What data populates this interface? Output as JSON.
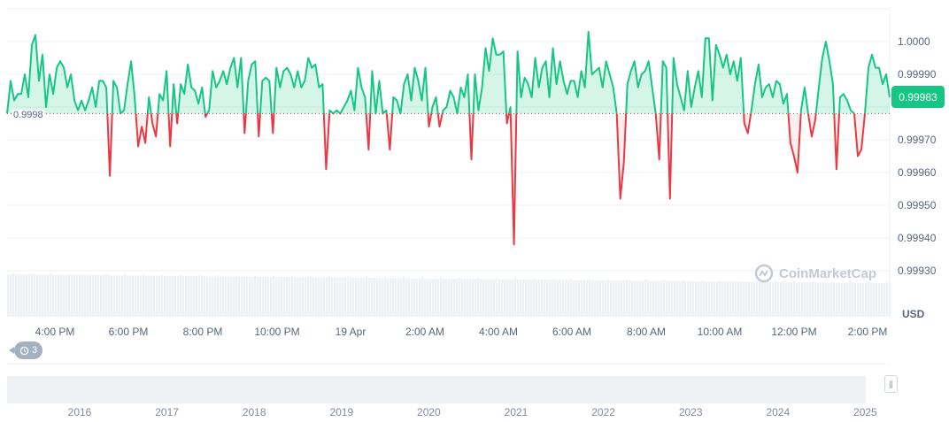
{
  "chart_data": {
    "type": "line",
    "currency_label": "USD",
    "current_price": "0.99983",
    "baseline_value": 0.99978,
    "baseline_label": "0.9998",
    "ylim": [
      0.99916,
      1.0001
    ],
    "y_ticks": [
      {
        "value": 1.0,
        "label": "1.0000"
      },
      {
        "value": 0.9999,
        "label": "0.99990"
      },
      {
        "value": 0.9997,
        "label": "0.99970"
      },
      {
        "value": 0.9996,
        "label": "0.99960"
      },
      {
        "value": 0.9995,
        "label": "0.99950"
      },
      {
        "value": 0.9994,
        "label": "0.99940"
      },
      {
        "value": 0.9993,
        "label": "0.99930"
      }
    ],
    "x_ticks": [
      "4:00 PM",
      "6:00 PM",
      "8:00 PM",
      "10:00 PM",
      "19 Apr",
      "2:00 AM",
      "4:00 AM",
      "6:00 AM",
      "8:00 AM",
      "10:00 AM",
      "12:00 PM",
      "2:00 PM"
    ],
    "navigator_ticks": [
      "2016",
      "2017",
      "2018",
      "2019",
      "2020",
      "2021",
      "2022",
      "2023",
      "2024",
      "2025"
    ],
    "grid": true,
    "colors": {
      "up": "#16c784",
      "down": "#ea3943",
      "volume": "#eff2f5"
    },
    "values": [
      0.99978,
      0.99988,
      0.99982,
      0.99984,
      0.99984,
      0.9999,
      0.99983,
      0.99999,
      1.00002,
      0.99988,
      0.99996,
      0.9998,
      0.9999,
      0.99984,
      0.99992,
      0.99994,
      0.99992,
      0.99986,
      0.9999,
      0.99982,
      0.99979,
      0.99982,
      0.99979,
      0.99982,
      0.99986,
      0.9998,
      0.99988,
      0.99988,
      0.99986,
      0.99959,
      0.99988,
      0.99986,
      0.99978,
      0.99979,
      0.99987,
      0.99994,
      0.99983,
      0.99968,
      0.99974,
      0.99969,
      0.99983,
      0.99975,
      0.99971,
      0.99984,
      0.99982,
      0.99991,
      0.99968,
      0.99987,
      0.99975,
      0.99987,
      0.99984,
      0.99993,
      0.99986,
      0.99985,
      0.99981,
      0.99986,
      0.99977,
      0.99979,
      0.99991,
      0.99986,
      0.99988,
      0.99991,
      0.99987,
      0.99992,
      0.99995,
      0.99986,
      0.99995,
      0.99972,
      0.99988,
      0.99993,
      0.99994,
      0.99971,
      0.99988,
      0.99989,
      0.99988,
      0.99972,
      0.99992,
      0.99986,
      0.99991,
      0.99992,
      0.9999,
      0.99986,
      0.99991,
      0.99986,
      0.99988,
      0.99995,
      0.99992,
      0.99993,
      0.99986,
      0.99987,
      0.99961,
      0.99979,
      0.99978,
      0.99979,
      0.99978,
      0.9998,
      0.99982,
      0.99985,
      0.99979,
      0.99992,
      0.99986,
      0.99983,
      0.99967,
      0.99991,
      0.99978,
      0.99988,
      0.99978,
      0.99979,
      0.99967,
      0.99983,
      0.99982,
      0.99978,
      0.99987,
      0.9999,
      0.99982,
      0.99992,
      0.99988,
      0.99982,
      0.99992,
      0.99974,
      0.9998,
      0.99983,
      0.99974,
      0.99979,
      0.9998,
      0.99985,
      0.99983,
      0.99978,
      0.99986,
      0.99983,
      0.9999,
      0.99964,
      0.9999,
      0.99979,
      0.99986,
      0.99998,
      0.99991,
      1.00001,
      0.99996,
      0.99996,
      0.99997,
      0.99975,
      0.9998,
      0.99938,
      0.99997,
      0.99983,
      0.99989,
      0.99987,
      0.99983,
      0.99995,
      0.99986,
      0.99992,
      0.99994,
      0.99983,
      0.99998,
      0.99987,
      0.99994,
      0.99988,
      0.99984,
      0.99988,
      0.99988,
      0.99983,
      0.99991,
      0.99986,
      1.00003,
      0.9999,
      0.99991,
      0.99992,
      0.99986,
      0.99994,
      0.9999,
      0.99986,
      0.99978,
      0.99952,
      0.99963,
      0.99987,
      0.99991,
      0.99994,
      0.99986,
      0.9999,
      0.99991,
      0.99994,
      0.99986,
      0.99978,
      0.99964,
      0.99994,
      0.99992,
      0.99952,
      0.99995,
      0.99987,
      0.99983,
      0.99979,
      0.99991,
      0.9998,
      0.99986,
      0.99991,
      0.99983,
      1.00001,
      1.00001,
      0.99982,
      0.99999,
      0.99996,
      0.99992,
      0.99996,
      0.9999,
      0.99994,
      0.99988,
      0.99995,
      0.99975,
      0.99972,
      0.99979,
      0.99987,
      0.99993,
      0.99983,
      0.99986,
      0.99987,
      0.99983,
      0.99988,
      0.99987,
      0.99981,
      0.99984,
      0.99969,
      0.99965,
      0.9996,
      0.99979,
      0.99986,
      0.99978,
      0.99971,
      0.99976,
      0.99986,
      0.99995,
      1.0,
      0.99994,
      0.99987,
      0.99961,
      0.99983,
      0.99984,
      0.99982,
      0.99979,
      0.99978,
      0.99965,
      0.99967,
      0.99978,
      0.99992,
      0.99996,
      0.99992,
      0.99992,
      0.99987,
      0.9999,
      0.99983
    ]
  },
  "watermark": "CoinMarketCap",
  "history_badge": {
    "icon": "history-icon",
    "count": "3"
  },
  "navigator_handle": {
    "icon": "grip-icon",
    "glyph": "||"
  }
}
